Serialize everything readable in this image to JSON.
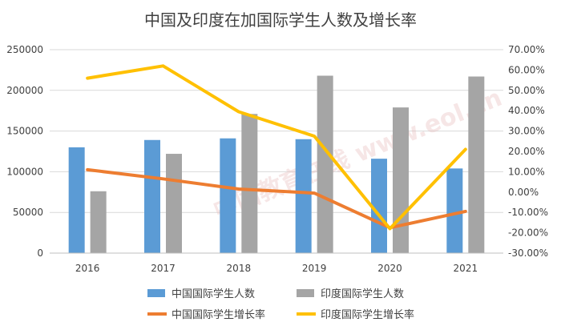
{
  "chart_data": {
    "type": "bar",
    "title": "中国及印度在加国际学生人数及增长率",
    "categories": [
      "2016",
      "2017",
      "2018",
      "2019",
      "2020",
      "2021"
    ],
    "series": [
      {
        "name": "中国国际学生人数",
        "kind": "bar",
        "axis": "left",
        "color": "#5b9bd5",
        "values": [
          130000,
          139000,
          141000,
          140000,
          116000,
          104000
        ]
      },
      {
        "name": "印度国际学生人数",
        "kind": "bar",
        "axis": "left",
        "color": "#a5a5a5",
        "values": [
          76000,
          122000,
          171000,
          218000,
          179000,
          217000
        ]
      },
      {
        "name": "中国国际学生增长率",
        "kind": "line",
        "axis": "right",
        "color": "#ed7d31",
        "values": [
          11.0,
          6.5,
          1.5,
          -0.5,
          -17.5,
          -9.5
        ]
      },
      {
        "name": "印度国际学生增长率",
        "kind": "line",
        "axis": "right",
        "color": "#ffc000",
        "values": [
          56.0,
          62.0,
          39.5,
          27.5,
          -18.0,
          21.0
        ]
      }
    ],
    "left_axis": {
      "min": 0,
      "max": 250000,
      "step": 50000,
      "ticks": [
        "0",
        "50000",
        "100000",
        "150000",
        "200000",
        "250000"
      ]
    },
    "right_axis": {
      "min": -30,
      "max": 70,
      "step": 10,
      "ticks": [
        "-30.00%",
        "-20.00%",
        "-10.00%",
        "0.00%",
        "10.00%",
        "20.00%",
        "30.00%",
        "40.00%",
        "50.00%",
        "60.00%",
        "70.00%"
      ]
    },
    "legend_position": "bottom",
    "grid": true
  },
  "watermark": "中国教育在线 www.eol.cn"
}
